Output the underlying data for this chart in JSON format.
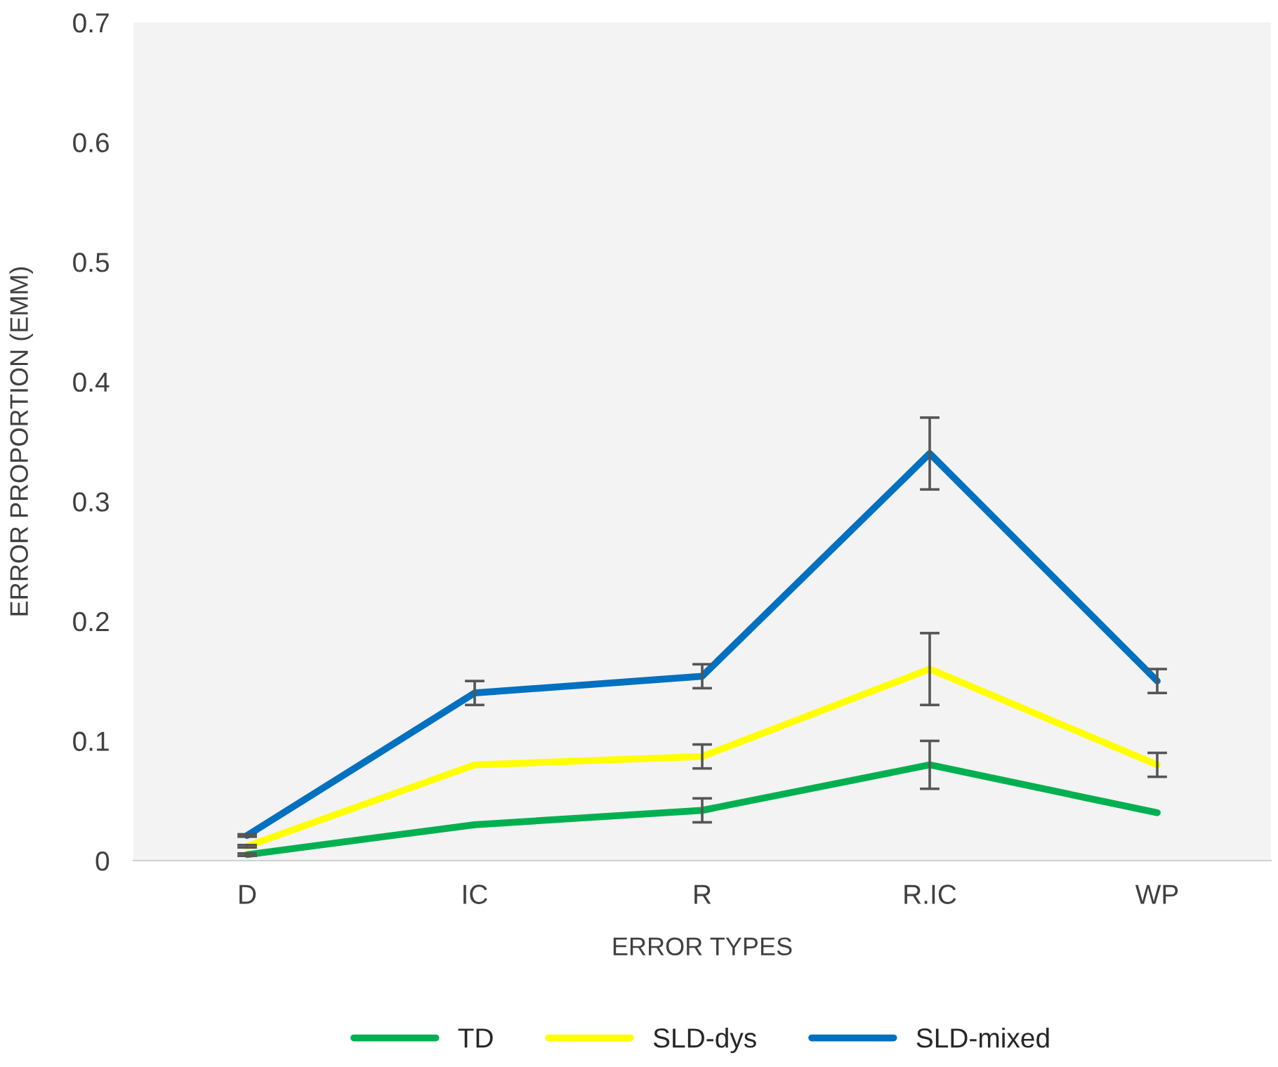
{
  "chart_data": {
    "type": "line",
    "xlabel": "ERROR TYPES",
    "ylabel": "ERROR PROPORTION (EMM)",
    "categories": [
      "D",
      "IC",
      "R",
      "R.IC",
      "WP"
    ],
    "series": [
      {
        "name": "TD",
        "color": "#00b050",
        "values": [
          0.005,
          0.03,
          0.042,
          0.08,
          0.04
        ],
        "errors": [
          0.001,
          null,
          0.01,
          0.02,
          null
        ]
      },
      {
        "name": "SLD-dys",
        "color": "#ffff00",
        "values": [
          0.012,
          0.08,
          0.087,
          0.16,
          0.08
        ],
        "errors": [
          0.001,
          null,
          0.01,
          0.03,
          0.01
        ]
      },
      {
        "name": "SLD-mixed",
        "color": "#0070c0",
        "values": [
          0.021,
          0.14,
          0.154,
          0.34,
          0.15
        ],
        "errors": [
          0.001,
          0.01,
          0.01,
          0.03,
          0.01
        ]
      }
    ],
    "ylim": [
      0,
      0.7
    ],
    "yticks": [
      {
        "value": 0,
        "label": "0"
      },
      0.1,
      0.2,
      0.3,
      0.4,
      0.5,
      0.6,
      0.7
    ],
    "grid": false,
    "legend": "bottom",
    "marker": "none",
    "line_style": "solid"
  }
}
